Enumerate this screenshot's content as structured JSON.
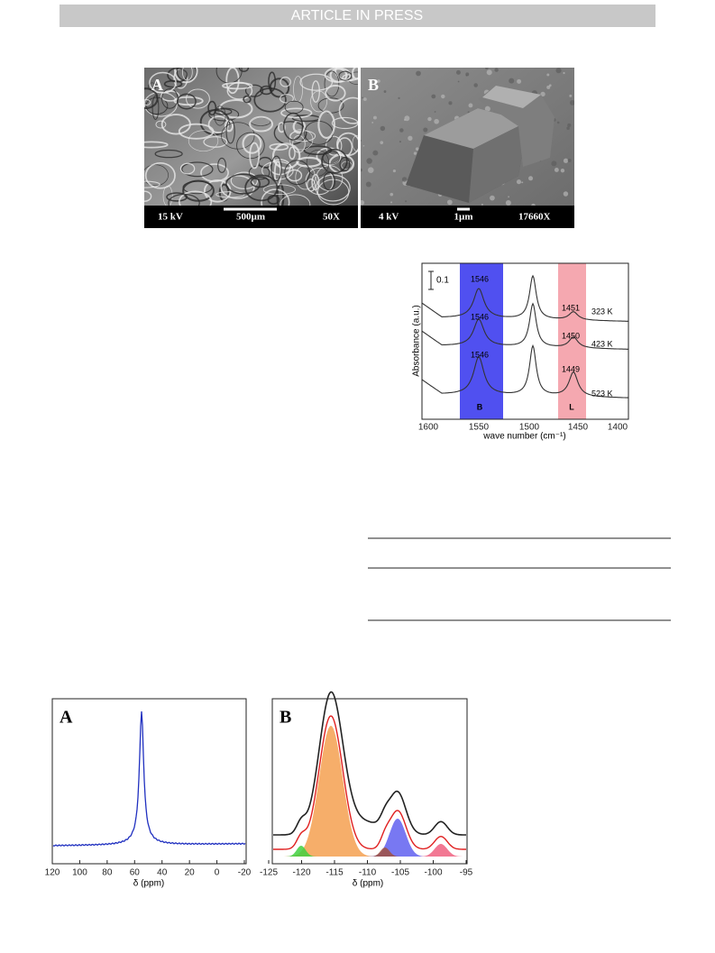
{
  "header": {
    "banner": "ARTICLE IN PRESS"
  },
  "figure1": {
    "panels": [
      {
        "label": "A",
        "voltage": "15 kV",
        "scale": "500µm",
        "magnification": "50X"
      },
      {
        "label": "B",
        "voltage": "4 kV",
        "scale": "1µm",
        "magnification": "17660X"
      }
    ]
  },
  "figure2": {
    "scale_bar": "0.1",
    "y_axis_label": "Absorbance (a.u.)",
    "x_axis_label": "wave number (cm⁻¹)",
    "x_ticks": [
      "1600",
      "1550",
      "1500",
      "1450",
      "1400"
    ],
    "band_labels": [
      "B",
      "L"
    ],
    "peak_labels": [
      "1546",
      "1546",
      "1546",
      "1451",
      "1450",
      "1449"
    ],
    "temperatures": [
      "323 K",
      "423 K",
      "523 K"
    ]
  },
  "figure3": {
    "panels": [
      {
        "label": "A",
        "x_axis_label": "δ (ppm)",
        "x_ticks": [
          "120",
          "100",
          "80",
          "60",
          "40",
          "20",
          "0",
          "-20"
        ]
      },
      {
        "label": "B",
        "x_axis_label": "δ (ppm)",
        "x_ticks": [
          "-125",
          "-120",
          "-115",
          "-110",
          "-105",
          "-100",
          "-95"
        ]
      }
    ]
  }
}
